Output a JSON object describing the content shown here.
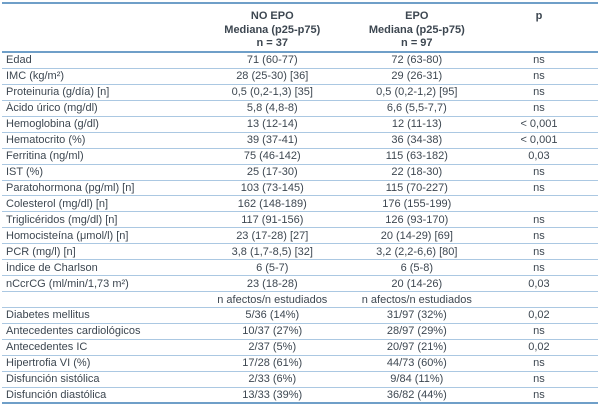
{
  "table": {
    "header": {
      "group_no_epo": {
        "line1": "NO EPO",
        "line2": "Mediana (p25-p75)",
        "line3": "n = 37"
      },
      "group_epo": {
        "line1": "EPO",
        "line2": "Mediana (p25-p75)",
        "line3": "n = 97"
      },
      "p_label": "p"
    },
    "rows": [
      {
        "label": "Edad",
        "no_epo": "71 (60-77)",
        "epo": "72 (63-80)",
        "p": "ns"
      },
      {
        "label": "IMC (kg/m²)",
        "no_epo": "28 (25-30) [36]",
        "epo": "29 (26-31)",
        "p": "ns"
      },
      {
        "label": "Proteinuria (g/día) [n]",
        "no_epo": "0,5 (0,2-1,3) [35]",
        "epo": "0,5 (0,2-1,2) [95]",
        "p": "ns"
      },
      {
        "label": "Ácido úrico (mg/dl)",
        "no_epo": "5,8 (4,8-8)",
        "epo": "6,6 (5,5-7,7)",
        "p": "ns"
      },
      {
        "label": "Hemoglobina (g/dl)",
        "no_epo": "13 (12-14)",
        "epo": "12 (11-13)",
        "p": "< 0,001"
      },
      {
        "label": "Hematocrito (%)",
        "no_epo": "39 (37-41)",
        "epo": "36 (34-38)",
        "p": "< 0,001"
      },
      {
        "label": "Ferritina (ng/ml)",
        "no_epo": "75 (46-142)",
        "epo": "115 (63-182)",
        "p": "0,03"
      },
      {
        "label": "IST (%)",
        "no_epo": "25 (17-30)",
        "epo": "22 (18-30)",
        "p": "ns"
      },
      {
        "label": "Paratohormona (pg/ml) [n]",
        "no_epo": "103 (73-145)",
        "epo": "115 (70-227)",
        "p": "ns"
      },
      {
        "label": "Colesterol (mg/dl) [n]",
        "no_epo": "162 (148-189)",
        "epo": "176 (155-199)",
        "p": ""
      },
      {
        "label": "Triglicéridos (mg/dl) [n]",
        "no_epo": "117 (91-156)",
        "epo": "126 (93-170)",
        "p": "ns"
      },
      {
        "label": "Homocisteína (μmol/l) [n]",
        "no_epo": "23 (17-28) [27]",
        "epo": "20 (14-29) [69]",
        "p": "ns"
      },
      {
        "label": "PCR (mg/l) [n]",
        "no_epo": "3,8 (1,7-8,5) [32]",
        "epo": "3,2 (2,2-6,6) [80]",
        "p": "ns"
      },
      {
        "label": "Índice de Charlson",
        "no_epo": "6 (5-7)",
        "epo": "6 (5-8)",
        "p": "ns"
      },
      {
        "label": "nCcrCG (ml/min/1,73 m²)",
        "no_epo": "23 (18-28)",
        "epo": "20 (14-26)",
        "p": "0,03"
      },
      {
        "label": "",
        "no_epo": "n afectos/n estudiados",
        "epo": "n afectos/n estudiados",
        "p": ""
      },
      {
        "label": "Diabetes mellitus",
        "no_epo": "5/36 (14%)",
        "epo": "31/97 (32%)",
        "p": "0,02"
      },
      {
        "label": "Antecedentes cardiológicos",
        "no_epo": "10/37 (27%)",
        "epo": "28/97 (29%)",
        "p": "ns"
      },
      {
        "label": "Antecedentes IC",
        "no_epo": "2/37 (5%)",
        "epo": "20/97 (21%)",
        "p": "0,02"
      },
      {
        "label": "Hipertrofia VI (%)",
        "no_epo": "17/28 (61%)",
        "epo": "44/73 (60%)",
        "p": "ns"
      },
      {
        "label": "Disfunción sistólica",
        "no_epo": "2/33 (6%)",
        "epo": "9/84 (11%)",
        "p": "ns"
      },
      {
        "label": "Disfunción diastólica",
        "no_epo": "13/33 (39%)",
        "epo": "36/82 (44%)",
        "p": "ns"
      }
    ],
    "colors": {
      "rule_strong": "#6f9fc8",
      "rule_light": "#abc8e2",
      "text": "#3d4751"
    }
  }
}
